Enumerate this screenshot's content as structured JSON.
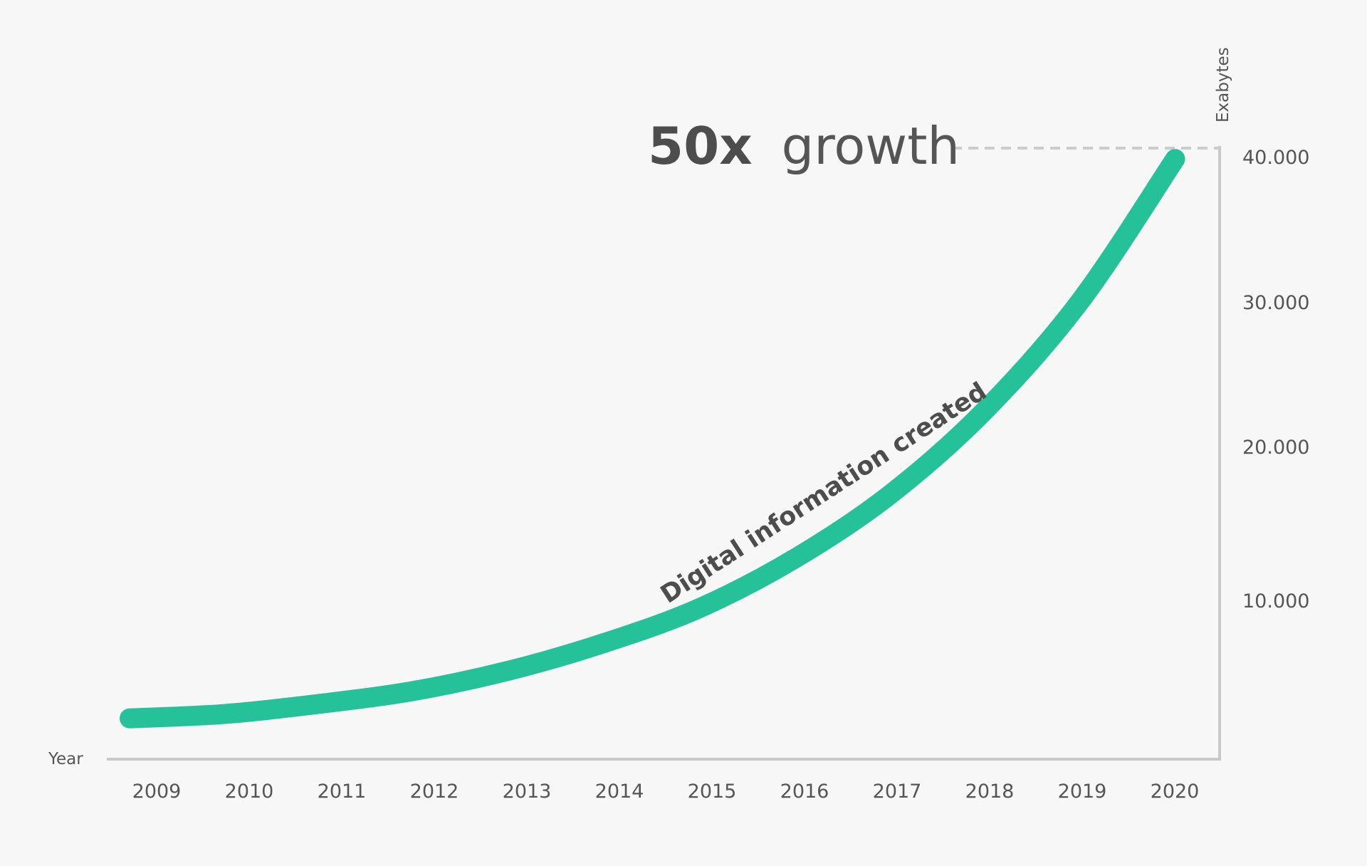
{
  "chart_data": {
    "type": "line",
    "x": [
      "2009",
      "2010",
      "2011",
      "2012",
      "2013",
      "2014",
      "2015",
      "2016",
      "2017",
      "2018",
      "2019",
      "2020"
    ],
    "series": [
      {
        "name": "Digital information created",
        "values": [
          800,
          1100,
          1800,
          2700,
          4100,
          6000,
          8400,
          11800,
          16200,
          22000,
          29500,
          39300
        ]
      }
    ],
    "ylabel": "Exabytes",
    "xlabel": "Year",
    "yticks": [
      "10.000",
      "20.000",
      "30.000",
      "40.000"
    ],
    "ytick_values": [
      10000,
      20000,
      30000,
      40000
    ],
    "ylim": [
      0,
      42000
    ],
    "grid": false,
    "legend": "none",
    "annotation": {
      "bold": "50x",
      "text": "growth",
      "reference_value": 41000
    },
    "colors": {
      "line": "#25c29a",
      "axis": "#c8c8c8",
      "dash": "#cccccc",
      "text": "#555555"
    }
  }
}
